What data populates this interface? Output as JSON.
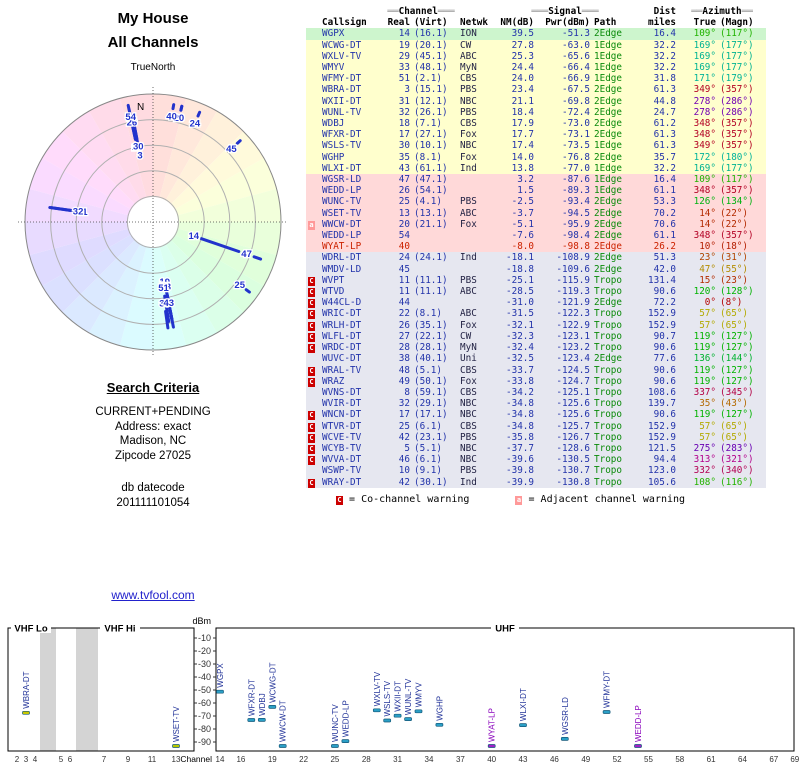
{
  "header": {
    "title1": "My House",
    "title2": "All Channels"
  },
  "radar": {
    "north": "TrueNorth",
    "n": "N"
  },
  "search": {
    "heading": "Search Criteria",
    "lines": [
      "CURRENT+PENDING",
      "Address: exact",
      "Madison, NC",
      "Zipcode 27025"
    ],
    "datecode_label": "db datecode",
    "datecode": "201111101054"
  },
  "link": "www.tvfool.com",
  "table": {
    "group_headers": {
      "channel": {
        "pre": "══",
        "label": "Channel",
        "post": "═══"
      },
      "signal": {
        "pre": "═══",
        "label": "Signal",
        "post": "═══"
      },
      "dist": "Dist",
      "azimuth": {
        "pre": "══",
        "label": "Azimuth",
        "post": "══"
      }
    },
    "columns": [
      "Callsign",
      "Real",
      "(Virt)",
      "Netwk",
      "NM(dB)",
      "Pwr(dBm)",
      "Path",
      "miles",
      "True",
      "(Magn)"
    ],
    "legend": [
      {
        "symbol": "C",
        "text": "= Co-channel warning"
      },
      {
        "symbol": "a",
        "text": "= Adjacent channel warning"
      }
    ]
  },
  "colors": {
    "navy_text": "#2233aa",
    "path_green": "#0a8a0a",
    "warn_red": "#cc0000",
    "warn_pink": "#ff9999",
    "link_blue": "#2222cc",
    "marker_blue": "#2b9fc6",
    "marker_purple": "#a020c8",
    "marker_yellow": "#c8c800",
    "row_green": "#cdf5cd",
    "row_yellow": "#ffffcd",
    "row_pink": "#ffd9d9",
    "row_gray": "#e6e7f0"
  },
  "chart_data": {
    "type": "scatter",
    "charts": [
      {
        "name": "azimuth-radar",
        "angle_field": "az_true",
        "radius_field": "nm",
        "label_field": "real",
        "note": "stronger signal plotted closer to center"
      },
      {
        "name": "channel-spectrum",
        "x_field": "real",
        "y_field": "pwr",
        "xlabel": "Channel",
        "ylabel": "dBm",
        "ylim": [
          -90,
          -10
        ],
        "yticks": [
          -10,
          -20,
          -30,
          -40,
          -50,
          -60,
          -70,
          -80,
          -90
        ],
        "bands": [
          "VHF Lo",
          "VHF Hi",
          "UHF"
        ],
        "vhf_ticks": [
          2,
          3,
          4,
          5,
          6,
          7,
          9,
          11,
          13
        ],
        "uhf_ticks": [
          14,
          16,
          19,
          22,
          25,
          28,
          31,
          34,
          37,
          40,
          43,
          46,
          49,
          52,
          55,
          58,
          61,
          64,
          67,
          69
        ]
      }
    ],
    "stations": [
      {
        "callsign": "WGPX",
        "real": "14",
        "virt": "(16.1)",
        "netwk": "ION",
        "nm": 39.5,
        "pwr": -51.3,
        "path": "2Edge",
        "miles": 16.4,
        "az_true": 109,
        "az_magn": 117,
        "warn": ""
      },
      {
        "callsign": "WCWG-DT",
        "real": "19",
        "virt": "(20.1)",
        "netwk": "CW",
        "nm": 27.8,
        "pwr": -63.0,
        "path": "1Edge",
        "miles": 32.2,
        "az_true": 169,
        "az_magn": 177,
        "warn": ""
      },
      {
        "callsign": "WXLV-TV",
        "real": "29",
        "virt": "(45.1)",
        "netwk": "ABC",
        "nm": 25.3,
        "pwr": -65.6,
        "path": "1Edge",
        "miles": 32.2,
        "az_true": 169,
        "az_magn": 177,
        "warn": ""
      },
      {
        "callsign": "WMYV",
        "real": "33",
        "virt": "(48.1)",
        "netwk": "MyN",
        "nm": 24.4,
        "pwr": -66.4,
        "path": "1Edge",
        "miles": 32.2,
        "az_true": 169,
        "az_magn": 177,
        "warn": ""
      },
      {
        "callsign": "WFMY-DT",
        "real": "51",
        "virt": "(2.1)",
        "netwk": "CBS",
        "nm": 24.0,
        "pwr": -66.9,
        "path": "1Edge",
        "miles": 31.8,
        "az_true": 171,
        "az_magn": 179,
        "warn": ""
      },
      {
        "callsign": "WBRA-DT",
        "real": "3",
        "virt": "(15.1)",
        "netwk": "PBS",
        "nm": 23.4,
        "pwr": -67.5,
        "path": "2Edge",
        "miles": 61.3,
        "az_true": 349,
        "az_magn": 357,
        "warn": "",
        "marker": "#c8c800"
      },
      {
        "callsign": "WXII-DT",
        "real": "31",
        "virt": "(12.1)",
        "netwk": "NBC",
        "nm": 21.1,
        "pwr": -69.8,
        "path": "2Edge",
        "miles": 44.8,
        "az_true": 278,
        "az_magn": 286,
        "warn": ""
      },
      {
        "callsign": "WUNL-TV",
        "real": "32",
        "virt": "(26.1)",
        "netwk": "PBS",
        "nm": 18.4,
        "pwr": -72.4,
        "path": "2Edge",
        "miles": 24.7,
        "az_true": 278,
        "az_magn": 286,
        "warn": ""
      },
      {
        "callsign": "WDBJ",
        "real": "18",
        "virt": "(7.1)",
        "netwk": "CBS",
        "nm": 17.9,
        "pwr": -73.0,
        "path": "2Edge",
        "miles": 61.2,
        "az_true": 348,
        "az_magn": 357,
        "warn": ""
      },
      {
        "callsign": "WFXR-DT",
        "real": "17",
        "virt": "(27.1)",
        "netwk": "Fox",
        "nm": 17.7,
        "pwr": -73.1,
        "path": "2Edge",
        "miles": 61.3,
        "az_true": 348,
        "az_magn": 357,
        "warn": ""
      },
      {
        "callsign": "WSLS-TV",
        "real": "30",
        "virt": "(10.1)",
        "netwk": "NBC",
        "nm": 17.4,
        "pwr": -73.5,
        "path": "1Edge",
        "miles": 61.3,
        "az_true": 349,
        "az_magn": 357,
        "warn": ""
      },
      {
        "callsign": "WGHP",
        "real": "35",
        "virt": "(8.1)",
        "netwk": "Fox",
        "nm": 14.0,
        "pwr": -76.8,
        "path": "2Edge",
        "miles": 35.7,
        "az_true": 172,
        "az_magn": 180,
        "warn": ""
      },
      {
        "callsign": "WLXI-DT",
        "real": "43",
        "virt": "(61.1)",
        "netwk": "Ind",
        "nm": 13.8,
        "pwr": -77.0,
        "path": "1Edge",
        "miles": 32.2,
        "az_true": 169,
        "az_magn": 177,
        "warn": ""
      },
      {
        "callsign": "WGSR-LD",
        "real": "47",
        "virt": "(47.1)",
        "netwk": "",
        "nm": 3.2,
        "pwr": -87.6,
        "path": "1Edge",
        "miles": 16.4,
        "az_true": 109,
        "az_magn": 117,
        "warn": ""
      },
      {
        "callsign": "WEDD-LP",
        "real": "26",
        "virt": "(54.1)",
        "netwk": "",
        "nm": 1.5,
        "pwr": -89.3,
        "path": "1Edge",
        "miles": 61.1,
        "az_true": 348,
        "az_magn": 357,
        "warn": ""
      },
      {
        "callsign": "WUNC-TV",
        "real": "25",
        "virt": "(4.1)",
        "netwk": "PBS",
        "nm": -2.5,
        "pwr": -93.4,
        "path": "2Edge",
        "miles": 53.3,
        "az_true": 126,
        "az_magn": 134,
        "warn": ""
      },
      {
        "callsign": "WSET-TV",
        "real": "13",
        "virt": "(13.1)",
        "netwk": "ABC",
        "nm": -3.7,
        "pwr": -94.5,
        "path": "2Edge",
        "miles": 70.2,
        "az_true": 14,
        "az_magn": 22,
        "warn": "",
        "marker": "#b8c800"
      },
      {
        "callsign": "WWCW-DT",
        "real": "20",
        "virt": "(21.1)",
        "netwk": "Fox",
        "nm": -5.1,
        "pwr": -95.9,
        "path": "2Edge",
        "miles": 70.6,
        "az_true": 14,
        "az_magn": 22,
        "warn": "a"
      },
      {
        "callsign": "WEDD-LP",
        "real": "54",
        "virt": "",
        "netwk": "",
        "nm": -7.6,
        "pwr": -98.4,
        "path": "2Edge",
        "miles": 61.1,
        "az_true": 348,
        "az_magn": 357,
        "warn": "",
        "marker": "#a020c8",
        "label_color": "#8800bb"
      },
      {
        "callsign": "WYAT-LP",
        "real": "40",
        "virt": "",
        "netwk": "",
        "nm": -8.0,
        "pwr": -98.8,
        "path": "2Edge",
        "miles": 26.2,
        "az_true": 10,
        "az_magn": 18,
        "warn": "",
        "marker": "#a020c8",
        "label_color": "#8800bb",
        "text_color": "#cc2200"
      },
      {
        "callsign": "WDRL-DT",
        "real": "24",
        "virt": "(24.1)",
        "netwk": "Ind",
        "nm": -18.1,
        "pwr": -108.9,
        "path": "2Edge",
        "miles": 51.3,
        "az_true": 23,
        "az_magn": 31,
        "warn": ""
      },
      {
        "callsign": "WMDV-LD",
        "real": "45",
        "virt": "",
        "netwk": "",
        "nm": -18.8,
        "pwr": -109.6,
        "path": "2Edge",
        "miles": 42.0,
        "az_true": 47,
        "az_magn": 55,
        "warn": ""
      },
      {
        "callsign": "WVPT",
        "real": "11",
        "virt": "(11.1)",
        "netwk": "PBS",
        "nm": -25.1,
        "pwr": -115.9,
        "path": "Tropo",
        "miles": 131.4,
        "az_true": 15,
        "az_magn": 23,
        "warn": "C"
      },
      {
        "callsign": "WTVD",
        "real": "11",
        "virt": "(11.1)",
        "netwk": "ABC",
        "nm": -28.5,
        "pwr": -119.3,
        "path": "Tropo",
        "miles": 90.6,
        "az_true": 120,
        "az_magn": 128,
        "warn": "C"
      },
      {
        "callsign": "W44CL-D",
        "real": "44",
        "virt": "",
        "netwk": "",
        "nm": -31.0,
        "pwr": -121.9,
        "path": "2Edge",
        "miles": 72.2,
        "az_true": 0,
        "az_magn": 8,
        "warn": "C"
      },
      {
        "callsign": "WRIC-DT",
        "real": "22",
        "virt": "(8.1)",
        "netwk": "ABC",
        "nm": -31.5,
        "pwr": -122.3,
        "path": "Tropo",
        "miles": 152.9,
        "az_true": 57,
        "az_magn": 65,
        "warn": "C"
      },
      {
        "callsign": "WRLH-DT",
        "real": "26",
        "virt": "(35.1)",
        "netwk": "Fox",
        "nm": -32.1,
        "pwr": -122.9,
        "path": "Tropo",
        "miles": 152.9,
        "az_true": 57,
        "az_magn": 65,
        "warn": "C"
      },
      {
        "callsign": "WLFL-DT",
        "real": "27",
        "virt": "(22.1)",
        "netwk": "CW",
        "nm": -32.3,
        "pwr": -123.1,
        "path": "Tropo",
        "miles": 90.7,
        "az_true": 119,
        "az_magn": 127,
        "warn": "C"
      },
      {
        "callsign": "WRDC-DT",
        "real": "28",
        "virt": "(28.1)",
        "netwk": "MyN",
        "nm": -32.4,
        "pwr": -123.2,
        "path": "Tropo",
        "miles": 90.6,
        "az_true": 119,
        "az_magn": 127,
        "warn": "C"
      },
      {
        "callsign": "WUVC-DT",
        "real": "38",
        "virt": "(40.1)",
        "netwk": "Uni",
        "nm": -32.5,
        "pwr": -123.4,
        "path": "2Edge",
        "miles": 77.6,
        "az_true": 136,
        "az_magn": 144,
        "warn": ""
      },
      {
        "callsign": "WRAL-TV",
        "real": "48",
        "virt": "(5.1)",
        "netwk": "CBS",
        "nm": -33.7,
        "pwr": -124.5,
        "path": "Tropo",
        "miles": 90.6,
        "az_true": 119,
        "az_magn": 127,
        "warn": "C"
      },
      {
        "callsign": "WRAZ",
        "real": "49",
        "virt": "(50.1)",
        "netwk": "Fox",
        "nm": -33.8,
        "pwr": -124.7,
        "path": "Tropo",
        "miles": 90.6,
        "az_true": 119,
        "az_magn": 127,
        "warn": "C"
      },
      {
        "callsign": "WVNS-DT",
        "real": "8",
        "virt": "(59.1)",
        "netwk": "CBS",
        "nm": -34.2,
        "pwr": -125.1,
        "path": "Tropo",
        "miles": 108.6,
        "az_true": 337,
        "az_magn": 345,
        "warn": ""
      },
      {
        "callsign": "WVIR-DT",
        "real": "32",
        "virt": "(29.1)",
        "netwk": "NBC",
        "nm": -34.8,
        "pwr": -125.6,
        "path": "Tropo",
        "miles": 139.7,
        "az_true": 35,
        "az_magn": 43,
        "warn": ""
      },
      {
        "callsign": "WNCN-DT",
        "real": "17",
        "virt": "(17.1)",
        "netwk": "NBC",
        "nm": -34.8,
        "pwr": -125.6,
        "path": "Tropo",
        "miles": 90.6,
        "az_true": 119,
        "az_magn": 127,
        "warn": "C"
      },
      {
        "callsign": "WTVR-DT",
        "real": "25",
        "virt": "(6.1)",
        "netwk": "CBS",
        "nm": -34.8,
        "pwr": -125.7,
        "path": "Tropo",
        "miles": 152.9,
        "az_true": 57,
        "az_magn": 65,
        "warn": "C"
      },
      {
        "callsign": "WCVE-TV",
        "real": "42",
        "virt": "(23.1)",
        "netwk": "PBS",
        "nm": -35.8,
        "pwr": -126.7,
        "path": "Tropo",
        "miles": 152.9,
        "az_true": 57,
        "az_magn": 65,
        "warn": "C"
      },
      {
        "callsign": "WCYB-TV",
        "real": "5",
        "virt": "(5.1)",
        "netwk": "NBC",
        "nm": -37.7,
        "pwr": -128.6,
        "path": "Tropo",
        "miles": 121.5,
        "az_true": 275,
        "az_magn": 283,
        "warn": "C"
      },
      {
        "callsign": "WVVA-DT",
        "real": "46",
        "virt": "(6.1)",
        "netwk": "NBC",
        "nm": -39.6,
        "pwr": -130.5,
        "path": "Tropo",
        "miles": 94.4,
        "az_true": 313,
        "az_magn": 321,
        "warn": "C"
      },
      {
        "callsign": "WSWP-TV",
        "real": "10",
        "virt": "(9.1)",
        "netwk": "PBS",
        "nm": -39.8,
        "pwr": -130.7,
        "path": "Tropo",
        "miles": 123.0,
        "az_true": 332,
        "az_magn": 340,
        "warn": ""
      },
      {
        "callsign": "WRAY-DT",
        "real": "42",
        "virt": "(30.1)",
        "netwk": "Ind",
        "nm": -39.9,
        "pwr": -130.8,
        "path": "Tropo",
        "miles": 105.6,
        "az_true": 108,
        "az_magn": 116,
        "warn": "C"
      }
    ]
  }
}
